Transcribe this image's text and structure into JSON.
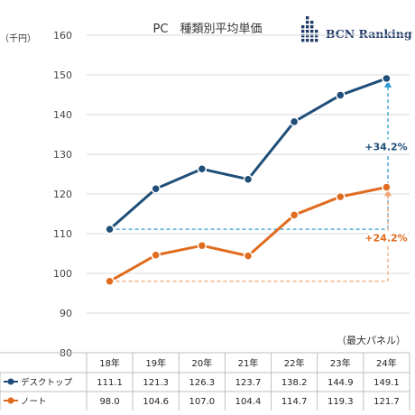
{
  "chart_data": {
    "type": "line",
    "title": "PC　種類別平均単価",
    "ylabel": "（千円）",
    "note": "（最大パネル）",
    "logo": "BCN Ranking",
    "categories": [
      "18年",
      "19年",
      "20年",
      "21年",
      "22年",
      "23年",
      "24年"
    ],
    "ylim": [
      80,
      160
    ],
    "yticks": [
      80,
      90,
      100,
      110,
      120,
      130,
      140,
      150,
      160
    ],
    "grid": true,
    "series": [
      {
        "name": "デスクトップ",
        "color": "#1f4e79",
        "values": [
          111.1,
          121.3,
          126.3,
          123.7,
          138.2,
          144.9,
          149.1
        ]
      },
      {
        "name": "ノート",
        "color": "#e06c1f",
        "values": [
          98.0,
          104.6,
          107.0,
          104.4,
          114.7,
          119.3,
          121.7
        ]
      }
    ],
    "annotations": [
      {
        "text": "+34.2%",
        "series": 0,
        "color": "#1f4e79",
        "arrow_color": "#2e9ad0"
      },
      {
        "text": "+24.2%",
        "series": 1,
        "color": "#e06c1f",
        "arrow_color": "#f0a878"
      }
    ],
    "table": true
  }
}
